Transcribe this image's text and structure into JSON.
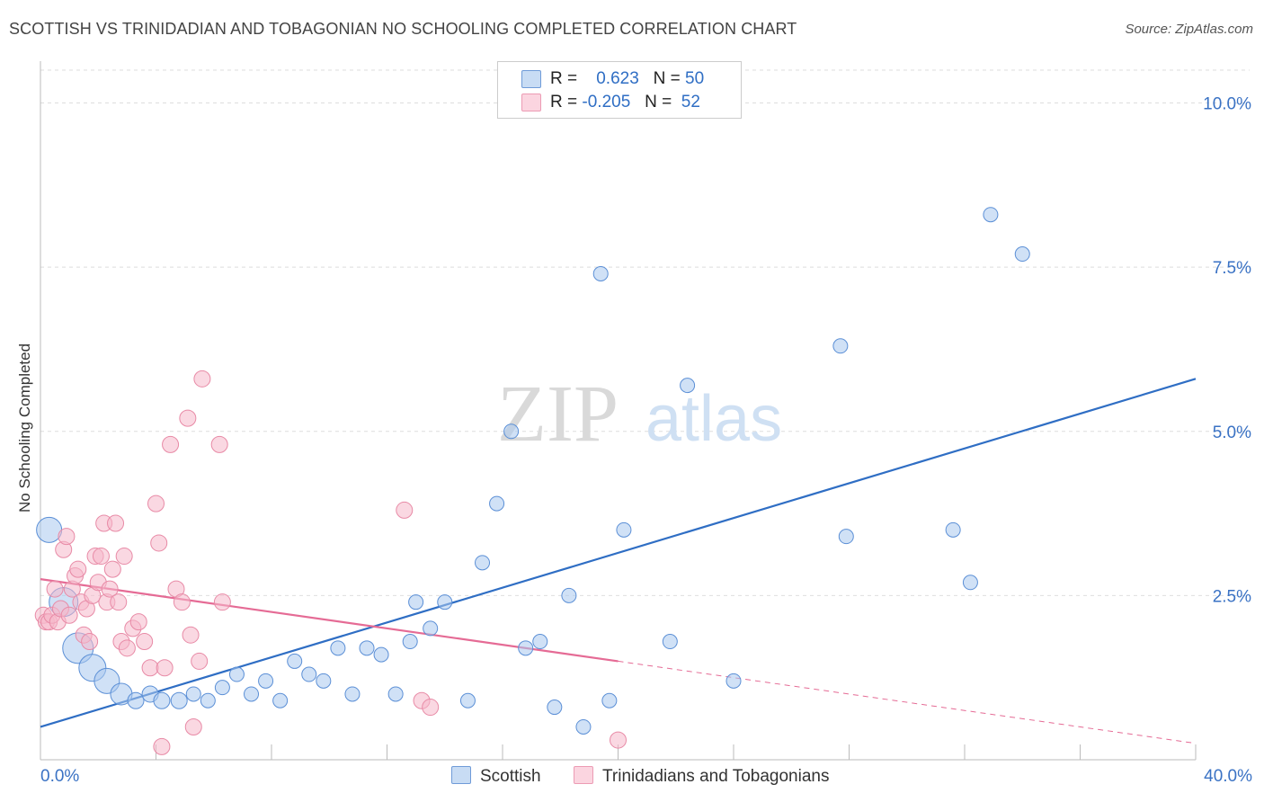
{
  "title": "SCOTTISH VS TRINIDADIAN AND TOBAGONIAN NO SCHOOLING COMPLETED CORRELATION CHART",
  "source": "Source: ZipAtlas.com",
  "watermark": {
    "zip": "ZIP",
    "atlas": "atlas"
  },
  "legend": {
    "rows": [
      {
        "r_label": "R =",
        "r_value": "0.623",
        "n_label": "N =",
        "n_value": "50",
        "color": "#a9c8ee"
      },
      {
        "r_label": "R =",
        "r_value": "-0.205",
        "n_label": "N =",
        "n_value": "52",
        "color": "#f6b8ca"
      }
    ]
  },
  "bottom_legend": [
    {
      "label": "Scottish",
      "color": "#a9c8ee"
    },
    {
      "label": "Trinidadians and Tobagonians",
      "color": "#f6b8ca"
    }
  ],
  "chart_data": {
    "type": "scatter",
    "title": "SCOTTISH VS TRINIDADIAN AND TOBAGONIAN NO SCHOOLING COMPLETED CORRELATION CHART",
    "xlabel": "",
    "ylabel": "No Schooling Completed",
    "xlim": [
      0,
      40
    ],
    "ylim": [
      0,
      10.5
    ],
    "x_tick_labels": [
      "0.0%",
      "40.0%"
    ],
    "y_ticks": [
      2.5,
      5.0,
      7.5,
      10.0
    ],
    "y_tick_labels": [
      "2.5%",
      "5.0%",
      "7.5%",
      "10.0%"
    ],
    "grid": true,
    "series": [
      {
        "name": "Scottish",
        "color": "#a9c8ee",
        "stroke": "#5b8fd6",
        "trend": {
          "x": [
            0,
            40
          ],
          "y": [
            0.5,
            5.8
          ],
          "color": "#2f6ec4"
        },
        "points": [
          {
            "x": 0.3,
            "y": 3.5,
            "s": 14
          },
          {
            "x": 0.8,
            "y": 2.4,
            "s": 16
          },
          {
            "x": 1.3,
            "y": 1.7,
            "s": 17
          },
          {
            "x": 1.8,
            "y": 1.4,
            "s": 15
          },
          {
            "x": 2.3,
            "y": 1.2,
            "s": 14
          },
          {
            "x": 2.8,
            "y": 1.0,
            "s": 12
          },
          {
            "x": 3.3,
            "y": 0.9,
            "s": 9
          },
          {
            "x": 3.8,
            "y": 1.0,
            "s": 9
          },
          {
            "x": 4.2,
            "y": 0.9,
            "s": 9
          },
          {
            "x": 4.8,
            "y": 0.9,
            "s": 9
          },
          {
            "x": 5.3,
            "y": 1.0,
            "s": 8
          },
          {
            "x": 5.8,
            "y": 0.9,
            "s": 8
          },
          {
            "x": 6.3,
            "y": 1.1,
            "s": 8
          },
          {
            "x": 6.8,
            "y": 1.3,
            "s": 8
          },
          {
            "x": 7.3,
            "y": 1.0,
            "s": 8
          },
          {
            "x": 7.8,
            "y": 1.2,
            "s": 8
          },
          {
            "x": 8.3,
            "y": 0.9,
            "s": 8
          },
          {
            "x": 8.8,
            "y": 1.5,
            "s": 8
          },
          {
            "x": 9.3,
            "y": 1.3,
            "s": 8
          },
          {
            "x": 9.8,
            "y": 1.2,
            "s": 8
          },
          {
            "x": 10.3,
            "y": 1.7,
            "s": 8
          },
          {
            "x": 10.8,
            "y": 1.0,
            "s": 8
          },
          {
            "x": 11.3,
            "y": 1.7,
            "s": 8
          },
          {
            "x": 11.8,
            "y": 1.6,
            "s": 8
          },
          {
            "x": 12.3,
            "y": 1.0,
            "s": 8
          },
          {
            "x": 12.8,
            "y": 1.8,
            "s": 8
          },
          {
            "x": 13.0,
            "y": 2.4,
            "s": 8
          },
          {
            "x": 13.5,
            "y": 2.0,
            "s": 8
          },
          {
            "x": 14.0,
            "y": 2.4,
            "s": 8
          },
          {
            "x": 14.8,
            "y": 0.9,
            "s": 8
          },
          {
            "x": 15.3,
            "y": 3.0,
            "s": 8
          },
          {
            "x": 15.8,
            "y": 3.9,
            "s": 8
          },
          {
            "x": 16.3,
            "y": 5.0,
            "s": 8
          },
          {
            "x": 16.8,
            "y": 1.7,
            "s": 8
          },
          {
            "x": 17.3,
            "y": 1.8,
            "s": 8
          },
          {
            "x": 17.8,
            "y": 0.8,
            "s": 8
          },
          {
            "x": 18.3,
            "y": 2.5,
            "s": 8
          },
          {
            "x": 18.8,
            "y": 0.5,
            "s": 8
          },
          {
            "x": 19.4,
            "y": 7.4,
            "s": 8
          },
          {
            "x": 19.7,
            "y": 0.9,
            "s": 8
          },
          {
            "x": 20.2,
            "y": 3.5,
            "s": 8
          },
          {
            "x": 21.8,
            "y": 1.8,
            "s": 8
          },
          {
            "x": 22.4,
            "y": 5.7,
            "s": 8
          },
          {
            "x": 24.0,
            "y": 1.2,
            "s": 8
          },
          {
            "x": 27.7,
            "y": 6.3,
            "s": 8
          },
          {
            "x": 27.9,
            "y": 3.4,
            "s": 8
          },
          {
            "x": 31.6,
            "y": 3.5,
            "s": 8
          },
          {
            "x": 32.2,
            "y": 2.7,
            "s": 8
          },
          {
            "x": 32.9,
            "y": 8.3,
            "s": 8
          },
          {
            "x": 34.0,
            "y": 7.7,
            "s": 8
          }
        ]
      },
      {
        "name": "Trinidadians and Tobagonians",
        "color": "#f6b8ca",
        "stroke": "#e88aa6",
        "trend": {
          "x": [
            0,
            20
          ],
          "y": [
            2.75,
            1.5
          ],
          "color": "#e56b95"
        },
        "trend_dashed": {
          "x": [
            20,
            40
          ],
          "y": [
            1.5,
            0.25
          ],
          "color": "#e56b95"
        },
        "points": [
          {
            "x": 0.1,
            "y": 2.2,
            "s": 9
          },
          {
            "x": 0.2,
            "y": 2.1,
            "s": 9
          },
          {
            "x": 0.3,
            "y": 2.1,
            "s": 9
          },
          {
            "x": 0.4,
            "y": 2.2,
            "s": 9
          },
          {
            "x": 0.5,
            "y": 2.6,
            "s": 9
          },
          {
            "x": 0.6,
            "y": 2.1,
            "s": 9
          },
          {
            "x": 0.7,
            "y": 2.3,
            "s": 9
          },
          {
            "x": 0.8,
            "y": 3.2,
            "s": 9
          },
          {
            "x": 0.9,
            "y": 3.4,
            "s": 9
          },
          {
            "x": 1.0,
            "y": 2.2,
            "s": 9
          },
          {
            "x": 1.1,
            "y": 2.6,
            "s": 9
          },
          {
            "x": 1.2,
            "y": 2.8,
            "s": 9
          },
          {
            "x": 1.3,
            "y": 2.9,
            "s": 9
          },
          {
            "x": 1.4,
            "y": 2.4,
            "s": 9
          },
          {
            "x": 1.5,
            "y": 1.9,
            "s": 9
          },
          {
            "x": 1.6,
            "y": 2.3,
            "s": 9
          },
          {
            "x": 1.7,
            "y": 1.8,
            "s": 9
          },
          {
            "x": 1.8,
            "y": 2.5,
            "s": 9
          },
          {
            "x": 1.9,
            "y": 3.1,
            "s": 9
          },
          {
            "x": 2.0,
            "y": 2.7,
            "s": 9
          },
          {
            "x": 2.1,
            "y": 3.1,
            "s": 9
          },
          {
            "x": 2.2,
            "y": 3.6,
            "s": 9
          },
          {
            "x": 2.3,
            "y": 2.4,
            "s": 9
          },
          {
            "x": 2.4,
            "y": 2.6,
            "s": 9
          },
          {
            "x": 2.5,
            "y": 2.9,
            "s": 9
          },
          {
            "x": 2.6,
            "y": 3.6,
            "s": 9
          },
          {
            "x": 2.7,
            "y": 2.4,
            "s": 9
          },
          {
            "x": 2.8,
            "y": 1.8,
            "s": 9
          },
          {
            "x": 2.9,
            "y": 3.1,
            "s": 9
          },
          {
            "x": 3.0,
            "y": 1.7,
            "s": 9
          },
          {
            "x": 3.2,
            "y": 2.0,
            "s": 9
          },
          {
            "x": 3.4,
            "y": 2.1,
            "s": 9
          },
          {
            "x": 3.6,
            "y": 1.8,
            "s": 9
          },
          {
            "x": 3.8,
            "y": 1.4,
            "s": 9
          },
          {
            "x": 4.0,
            "y": 3.9,
            "s": 9
          },
          {
            "x": 4.1,
            "y": 3.3,
            "s": 9
          },
          {
            "x": 4.2,
            "y": 0.2,
            "s": 9
          },
          {
            "x": 4.3,
            "y": 1.4,
            "s": 9
          },
          {
            "x": 4.5,
            "y": 4.8,
            "s": 9
          },
          {
            "x": 4.7,
            "y": 2.6,
            "s": 9
          },
          {
            "x": 4.9,
            "y": 2.4,
            "s": 9
          },
          {
            "x": 5.1,
            "y": 5.2,
            "s": 9
          },
          {
            "x": 5.2,
            "y": 1.9,
            "s": 9
          },
          {
            "x": 5.3,
            "y": 0.5,
            "s": 9
          },
          {
            "x": 5.5,
            "y": 1.5,
            "s": 9
          },
          {
            "x": 5.6,
            "y": 5.8,
            "s": 9
          },
          {
            "x": 6.2,
            "y": 4.8,
            "s": 9
          },
          {
            "x": 6.3,
            "y": 2.4,
            "s": 9
          },
          {
            "x": 12.6,
            "y": 3.8,
            "s": 9
          },
          {
            "x": 13.2,
            "y": 0.9,
            "s": 9
          },
          {
            "x": 13.5,
            "y": 0.8,
            "s": 9
          },
          {
            "x": 20.0,
            "y": 0.3,
            "s": 9
          }
        ]
      }
    ]
  }
}
